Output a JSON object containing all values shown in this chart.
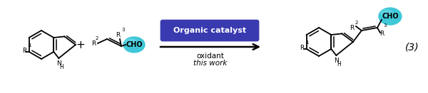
{
  "background_color": "#ffffff",
  "figure_width": 6.0,
  "figure_height": 1.31,
  "dpi": 100,
  "reaction_number": "(3)",
  "arrow_box_text": "Organic catalyst",
  "arrow_below_line1": "oxidant",
  "arrow_below_line2": "this work",
  "box_facecolor": "#3a3ab0",
  "box_edgecolor": "#3a3ab0",
  "box_text_color": "#ffffff",
  "arrow_color": "#000000",
  "teal_color": "#40c8d8",
  "teal_color2": "#70d8e8"
}
